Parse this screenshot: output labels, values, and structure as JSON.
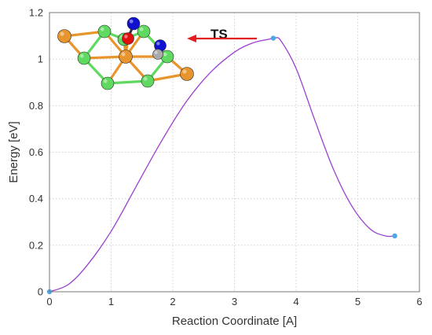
{
  "chart_data": {
    "type": "line",
    "title": "",
    "xlabel": "Reaction Coordinate [A]",
    "ylabel": "Energy [eV]",
    "xlim": [
      0,
      6
    ],
    "ylim": [
      0,
      1.2
    ],
    "xticks": [
      0,
      1,
      2,
      3,
      4,
      5,
      6
    ],
    "yticks": [
      0,
      0.2,
      0.4,
      0.6,
      0.8,
      1.0,
      1.2
    ],
    "xtick_labels": [
      "0",
      "1",
      "2",
      "3",
      "4",
      "5",
      "6"
    ],
    "ytick_labels": [
      "0",
      "0.2",
      "0.4",
      "0.6",
      "0.8",
      "1",
      "1.2"
    ],
    "grid": true,
    "series": [
      {
        "color": "#9b3fcf",
        "x": [
          0,
          0.3,
          0.6,
          1.0,
          1.4,
          1.8,
          2.2,
          2.6,
          3.0,
          3.3,
          3.55,
          3.65,
          3.75,
          4.0,
          4.3,
          4.6,
          4.9,
          5.2,
          5.45,
          5.6
        ],
        "y": [
          0,
          0.03,
          0.11,
          0.26,
          0.45,
          0.64,
          0.81,
          0.94,
          1.03,
          1.07,
          1.085,
          1.09,
          1.08,
          0.96,
          0.74,
          0.53,
          0.37,
          0.27,
          0.24,
          0.24
        ]
      }
    ],
    "markers": [
      {
        "x": 0,
        "y": 0,
        "color": "#4fa6e8"
      },
      {
        "x": 3.63,
        "y": 1.09,
        "color": "#4fa6e8"
      },
      {
        "x": 5.6,
        "y": 0.24,
        "color": "#4fa6e8"
      }
    ],
    "annotations": [
      {
        "text": "TS",
        "arrow_color": "#e02020"
      }
    ],
    "inset": {
      "atoms": {
        "green": "#5fd95f",
        "orange": "#e8952e",
        "red": "#e01010",
        "blue": "#1010d0",
        "grey": "#aaaaaa"
      }
    }
  }
}
